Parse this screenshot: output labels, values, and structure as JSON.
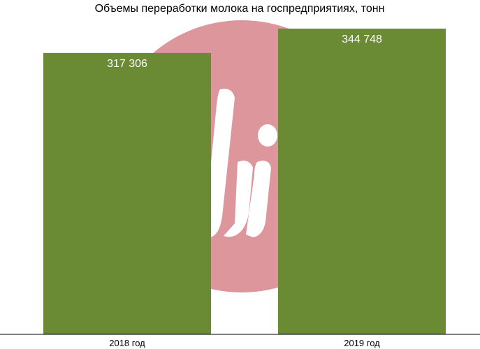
{
  "chart_data": {
    "type": "bar",
    "title": "Объемы переработки молока на госпредприятиях, тонн",
    "categories": [
      "2018 год",
      "2019 год"
    ],
    "values": [
      317306,
      344748
    ],
    "value_labels": [
      "317 306",
      "344 748"
    ],
    "xlabel": "",
    "ylabel": "",
    "ylim": [
      0,
      355000
    ],
    "grid": false,
    "legend": "none",
    "bar_color": "#6a8a33",
    "watermark_color": "#dd969c"
  }
}
